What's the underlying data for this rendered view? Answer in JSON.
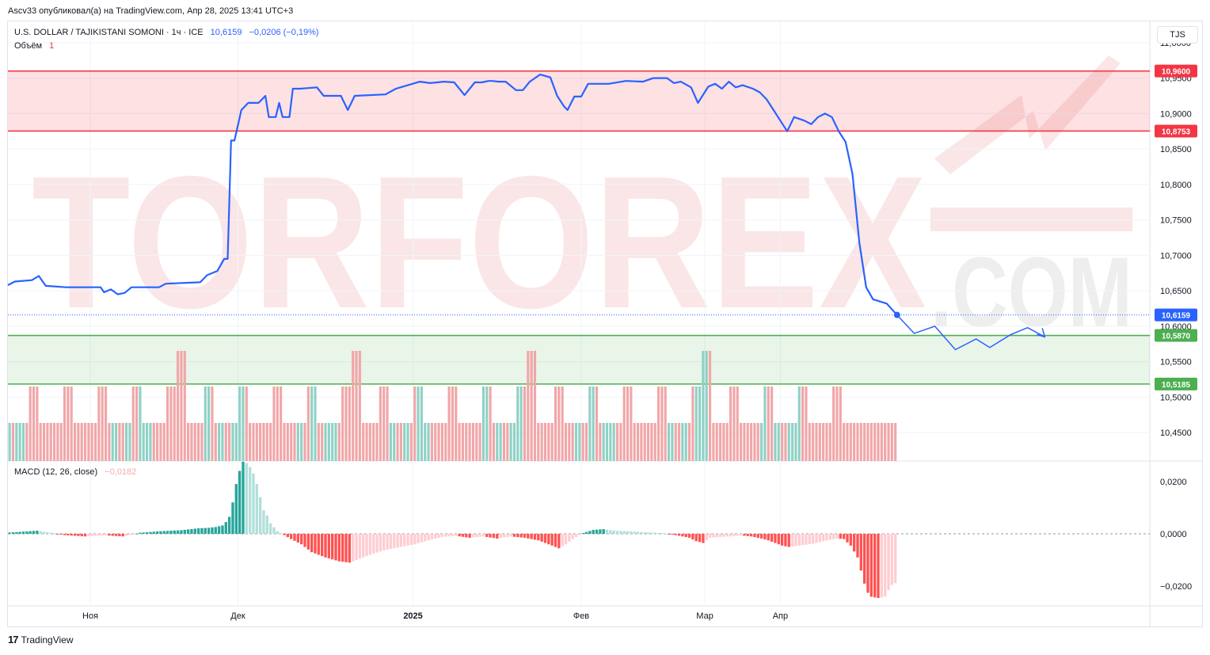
{
  "header": {
    "published": "Ascv33 опубликовал(а) на TradingView.com, Апр 28, 2025 13:41 UTC+3"
  },
  "legend": {
    "symbol": "U.S. DOLLAR / TAJIKISTANI SOMONI · 1ч · ICE",
    "price": "10,6159",
    "change": "−0,0206 (−0,19%)",
    "volume_label": "Объём",
    "volume_value": "1",
    "macd_label": "MACD (12, 26, close)",
    "macd_value": "−0,0182"
  },
  "currency_button": "TJS",
  "footer": {
    "brand": "TradingView"
  },
  "watermark": {
    "text_main": "TORFOREX",
    "text_tld": ".COM"
  },
  "colors": {
    "line": "#2962ff",
    "resistance": "#f23645",
    "support": "#4caf50",
    "vol_up": "#8fd1c5",
    "vol_down": "#f1a6a8",
    "macd_pos_strong": "#26a69a",
    "macd_pos_weak": "#b2dfdb",
    "macd_neg_strong": "#ff5252",
    "macd_neg_weak": "#ffcdd2"
  },
  "chart_data": {
    "type": "line",
    "ylim": [
      10.41,
      11.03
    ],
    "y_ticks": [
      {
        "value": 11.0,
        "label": "11,0000"
      },
      {
        "value": 10.95,
        "label": "10,9500"
      },
      {
        "value": 10.9,
        "label": "10,9000"
      },
      {
        "value": 10.85,
        "label": "10,8500"
      },
      {
        "value": 10.8,
        "label": "10,8000"
      },
      {
        "value": 10.75,
        "label": "10,7500"
      },
      {
        "value": 10.7,
        "label": "10,7000"
      },
      {
        "value": 10.65,
        "label": "10,6500"
      },
      {
        "value": 10.6,
        "label": "10,6000"
      },
      {
        "value": 10.55,
        "label": "10,5500"
      },
      {
        "value": 10.5,
        "label": "10,5000"
      },
      {
        "value": 10.45,
        "label": "10,4500"
      }
    ],
    "x_ticks": [
      {
        "index": 24,
        "label": "Ноя",
        "bold": false
      },
      {
        "index": 67,
        "label": "Дек",
        "bold": false
      },
      {
        "index": 118,
        "label": "2025",
        "bold": true
      },
      {
        "index": 167,
        "label": "Фев",
        "bold": false
      },
      {
        "index": 203,
        "label": "Мар",
        "bold": false
      },
      {
        "index": 225,
        "label": "Апр",
        "bold": false
      }
    ],
    "n_bars": 259,
    "price": [
      [
        0,
        10.658
      ],
      [
        2,
        10.663
      ],
      [
        7,
        10.665
      ],
      [
        9,
        10.671
      ],
      [
        11,
        10.657
      ],
      [
        17,
        10.655
      ],
      [
        27,
        10.655
      ],
      [
        28,
        10.648
      ],
      [
        30,
        10.652
      ],
      [
        32,
        10.645
      ],
      [
        34,
        10.647
      ],
      [
        36,
        10.655
      ],
      [
        44,
        10.655
      ],
      [
        46,
        10.66
      ],
      [
        56,
        10.662
      ],
      [
        58,
        10.672
      ],
      [
        61,
        10.678
      ],
      [
        63,
        10.695
      ],
      [
        64,
        10.695
      ],
      [
        65,
        10.862
      ],
      [
        66,
        10.862
      ],
      [
        68,
        10.905
      ],
      [
        70,
        10.915
      ],
      [
        73,
        10.915
      ],
      [
        75,
        10.925
      ],
      [
        76,
        10.895
      ],
      [
        78,
        10.895
      ],
      [
        79,
        10.915
      ],
      [
        80,
        10.895
      ],
      [
        82,
        10.895
      ],
      [
        83,
        10.935
      ],
      [
        85,
        10.935
      ],
      [
        90,
        10.937
      ],
      [
        92,
        10.925
      ],
      [
        97,
        10.925
      ],
      [
        99,
        10.905
      ],
      [
        101,
        10.925
      ],
      [
        110,
        10.927
      ],
      [
        113,
        10.935
      ],
      [
        120,
        10.945
      ],
      [
        123,
        10.943
      ],
      [
        127,
        10.945
      ],
      [
        130,
        10.944
      ],
      [
        133,
        10.926
      ],
      [
        136,
        10.944
      ],
      [
        138,
        10.944
      ],
      [
        140,
        10.946
      ],
      [
        141,
        10.946
      ],
      [
        143,
        10.945
      ],
      [
        145,
        10.945
      ],
      [
        148,
        10.933
      ],
      [
        150,
        10.933
      ],
      [
        152,
        10.945
      ],
      [
        155,
        10.955
      ],
      [
        158,
        10.951
      ],
      [
        160,
        10.925
      ],
      [
        162,
        10.91
      ],
      [
        163,
        10.905
      ],
      [
        165,
        10.924
      ],
      [
        167,
        10.924
      ],
      [
        169,
        10.942
      ],
      [
        171,
        10.942
      ],
      [
        175,
        10.942
      ],
      [
        180,
        10.946
      ],
      [
        185,
        10.945
      ],
      [
        188,
        10.95
      ],
      [
        192,
        10.95
      ],
      [
        194,
        10.943
      ],
      [
        196,
        10.945
      ],
      [
        199,
        10.937
      ],
      [
        201,
        10.915
      ],
      [
        204,
        10.938
      ],
      [
        206,
        10.942
      ],
      [
        208,
        10.935
      ],
      [
        210,
        10.945
      ],
      [
        212,
        10.937
      ],
      [
        214,
        10.94
      ],
      [
        217,
        10.935
      ],
      [
        219,
        10.93
      ],
      [
        221,
        10.92
      ],
      [
        223,
        10.905
      ],
      [
        225,
        10.89
      ],
      [
        227,
        10.875
      ],
      [
        229,
        10.895
      ],
      [
        232,
        10.89
      ],
      [
        234,
        10.885
      ],
      [
        236,
        10.895
      ],
      [
        238,
        10.9
      ],
      [
        240,
        10.895
      ],
      [
        242,
        10.875
      ],
      [
        244,
        10.86
      ],
      [
        246,
        10.815
      ],
      [
        248,
        10.718
      ],
      [
        250,
        10.655
      ],
      [
        252,
        10.638
      ],
      [
        256,
        10.632
      ],
      [
        259,
        10.6159
      ]
    ],
    "price_display": "10,6159",
    "levels": [
      {
        "value": 10.96,
        "label": "10,9600",
        "kind": "resistance"
      },
      {
        "value": 10.8753,
        "label": "10,8753",
        "kind": "resistance"
      },
      {
        "value": 10.587,
        "label": "10,5870",
        "kind": "support"
      },
      {
        "value": 10.5185,
        "label": "10,5185",
        "kind": "support"
      }
    ],
    "projection": [
      [
        259,
        10.6159
      ],
      [
        264,
        10.59
      ],
      [
        270,
        10.6
      ],
      [
        276,
        10.567
      ],
      [
        282,
        10.582
      ],
      [
        286,
        10.57
      ],
      [
        292,
        10.588
      ],
      [
        297,
        10.598
      ],
      [
        302,
        10.585
      ]
    ],
    "volume_pattern": "uduuuddddddddddddddddddddddddduudduudduuuuddddddddddddddduudduudduuuuddddddddddddddduudduudduuuuddddddddddddddduudduudduuuuddddddddddddddduudduudduuuuddddddddddddddduudduudduuuuddddddddddddddduudduudduuuuddddddddddddddduudduudduuuuddddddddddd",
    "volume_heights": "ssssssmmmsssssssmmmsssssssmmmsssssssmmmsssssssmmmtttsssssmmmsssssssmmmsssssssmmmsssssssmmmsssssssmmmtttsssssmmmsssssssmmmsssssssmmmsssssssmmmsssssssmmmtttsssssmmmsssssssmmmsssssssmmmsssssssmmmsssssssmmmtttsssssmmmsssssssmmmsssssssmmmsssssssmmmss",
    "macd": {
      "ylim": [
        -0.0275,
        0.0275
      ],
      "y_ticks": [
        {
          "value": 0.02,
          "label": "0,0200"
        },
        {
          "value": 0.0,
          "label": "0,0000"
        },
        {
          "value": -0.02,
          "label": "−0,0200"
        }
      ],
      "hist": [
        [
          0,
          0.0005
        ],
        [
          8,
          0.0012
        ],
        [
          12,
          0.0004
        ],
        [
          16,
          -0.0005
        ],
        [
          22,
          -0.001
        ],
        [
          28,
          -0.0006
        ],
        [
          33,
          -0.001
        ],
        [
          38,
          0.0004
        ],
        [
          44,
          0.001
        ],
        [
          50,
          0.0014
        ],
        [
          55,
          0.0021
        ],
        [
          58,
          0.0023
        ],
        [
          60,
          0.0026
        ],
        [
          62,
          0.0032
        ],
        [
          63,
          0.0045
        ],
        [
          64,
          0.0065
        ],
        [
          65,
          0.012
        ],
        [
          66,
          0.019
        ],
        [
          67,
          0.024
        ],
        [
          68,
          0.0275
        ],
        [
          69,
          0.027
        ],
        [
          70,
          0.0255
        ],
        [
          71,
          0.023
        ],
        [
          72,
          0.019
        ],
        [
          73,
          0.014
        ],
        [
          74,
          0.009
        ],
        [
          75,
          0.007
        ],
        [
          76,
          0.004
        ],
        [
          77,
          0.0025
        ],
        [
          78,
          0.001
        ],
        [
          80,
          -0.0005
        ],
        [
          82,
          -0.002
        ],
        [
          85,
          -0.004
        ],
        [
          88,
          -0.007
        ],
        [
          92,
          -0.009
        ],
        [
          96,
          -0.0105
        ],
        [
          99,
          -0.011
        ],
        [
          102,
          -0.0095
        ],
        [
          106,
          -0.0075
        ],
        [
          110,
          -0.006
        ],
        [
          114,
          -0.005
        ],
        [
          118,
          -0.004
        ],
        [
          122,
          -0.0025
        ],
        [
          126,
          -0.0012
        ],
        [
          130,
          -0.0008
        ],
        [
          134,
          -0.0015
        ],
        [
          138,
          -0.001
        ],
        [
          142,
          -0.0018
        ],
        [
          146,
          -0.001
        ],
        [
          150,
          -0.0015
        ],
        [
          154,
          -0.0025
        ],
        [
          157,
          -0.004
        ],
        [
          160,
          -0.0055
        ],
        [
          162,
          -0.004
        ],
        [
          164,
          -0.002
        ],
        [
          167,
          0.0003
        ],
        [
          170,
          0.0015
        ],
        [
          173,
          0.0018
        ],
        [
          176,
          0.0012
        ],
        [
          180,
          0.001
        ],
        [
          185,
          0.0006
        ],
        [
          190,
          0.0003
        ],
        [
          194,
          -0.0005
        ],
        [
          198,
          -0.0015
        ],
        [
          200,
          -0.0028
        ],
        [
          202,
          -0.0035
        ],
        [
          204,
          -0.0015
        ],
        [
          207,
          -0.0012
        ],
        [
          210,
          -0.001
        ],
        [
          213,
          -0.0006
        ],
        [
          216,
          -0.001
        ],
        [
          219,
          -0.0018
        ],
        [
          221,
          -0.0025
        ],
        [
          223,
          -0.0035
        ],
        [
          225,
          -0.0045
        ],
        [
          227,
          -0.005
        ],
        [
          230,
          -0.0045
        ],
        [
          234,
          -0.0038
        ],
        [
          238,
          -0.0025
        ],
        [
          241,
          -0.0018
        ],
        [
          243,
          -0.002
        ],
        [
          245,
          -0.0045
        ],
        [
          247,
          -0.009
        ],
        [
          248,
          -0.014
        ],
        [
          249,
          -0.019
        ],
        [
          250,
          -0.0225
        ],
        [
          251,
          -0.024
        ],
        [
          253,
          -0.0245
        ],
        [
          255,
          -0.024
        ],
        [
          256,
          -0.0215
        ],
        [
          257,
          -0.0195
        ],
        [
          259,
          -0.0182
        ]
      ]
    }
  }
}
